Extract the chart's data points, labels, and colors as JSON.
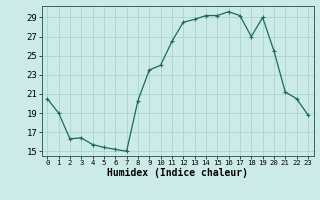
{
  "x": [
    0,
    1,
    2,
    3,
    4,
    5,
    6,
    7,
    8,
    9,
    10,
    11,
    12,
    13,
    14,
    15,
    16,
    17,
    18,
    19,
    20,
    21,
    22,
    23
  ],
  "y": [
    20.5,
    19.0,
    16.3,
    16.4,
    15.7,
    15.4,
    15.2,
    15.0,
    20.3,
    23.5,
    24.0,
    26.5,
    28.5,
    28.8,
    29.2,
    29.2,
    29.6,
    29.2,
    27.0,
    29.0,
    25.5,
    21.2,
    20.5,
    18.8
  ],
  "line_color": "#1a6b5a",
  "marker": "+",
  "markersize": 3,
  "linewidth": 0.9,
  "bg_color": "#cceae7",
  "grid_color": "#aad4d0",
  "xlabel": "Humidex (Indice chaleur)",
  "xlim": [
    -0.5,
    23.5
  ],
  "ylim": [
    14.5,
    30.2
  ],
  "yticks": [
    15,
    17,
    19,
    21,
    23,
    25,
    27,
    29
  ],
  "xticks": [
    0,
    1,
    2,
    3,
    4,
    5,
    6,
    7,
    8,
    9,
    10,
    11,
    12,
    13,
    14,
    15,
    16,
    17,
    18,
    19,
    20,
    21,
    22,
    23
  ],
  "xlabel_fontsize": 7,
  "ytick_fontsize": 6.5,
  "xtick_fontsize": 5.2
}
